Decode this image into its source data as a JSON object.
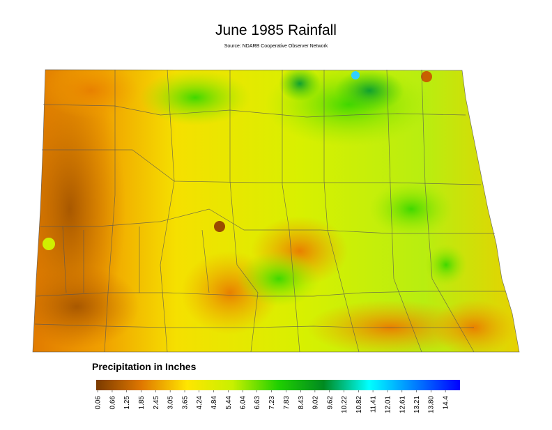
{
  "header": {
    "title": "June 1985 Rainfall",
    "source": "Source: NDARB Cooperative Observer Network"
  },
  "legend": {
    "title": "Precipitation in Inches",
    "range": [
      0,
      15
    ],
    "colors": [
      "#7a3a00",
      "#e07800",
      "#ffe600",
      "#c8f000",
      "#20d000",
      "#008a20",
      "#00ffff",
      "#0080ff",
      "#0000ff"
    ],
    "ticks": [
      0.06,
      0.66,
      1.25,
      1.85,
      2.45,
      3.05,
      3.65,
      4.24,
      4.84,
      5.44,
      6.04,
      6.63,
      7.23,
      7.83,
      8.43,
      9.02,
      9.62,
      10.22,
      10.82,
      11.41,
      12.01,
      12.61,
      13.21,
      {
        "value": 13.8,
        "label": "13.80"
      },
      14.4
    ]
  }
}
